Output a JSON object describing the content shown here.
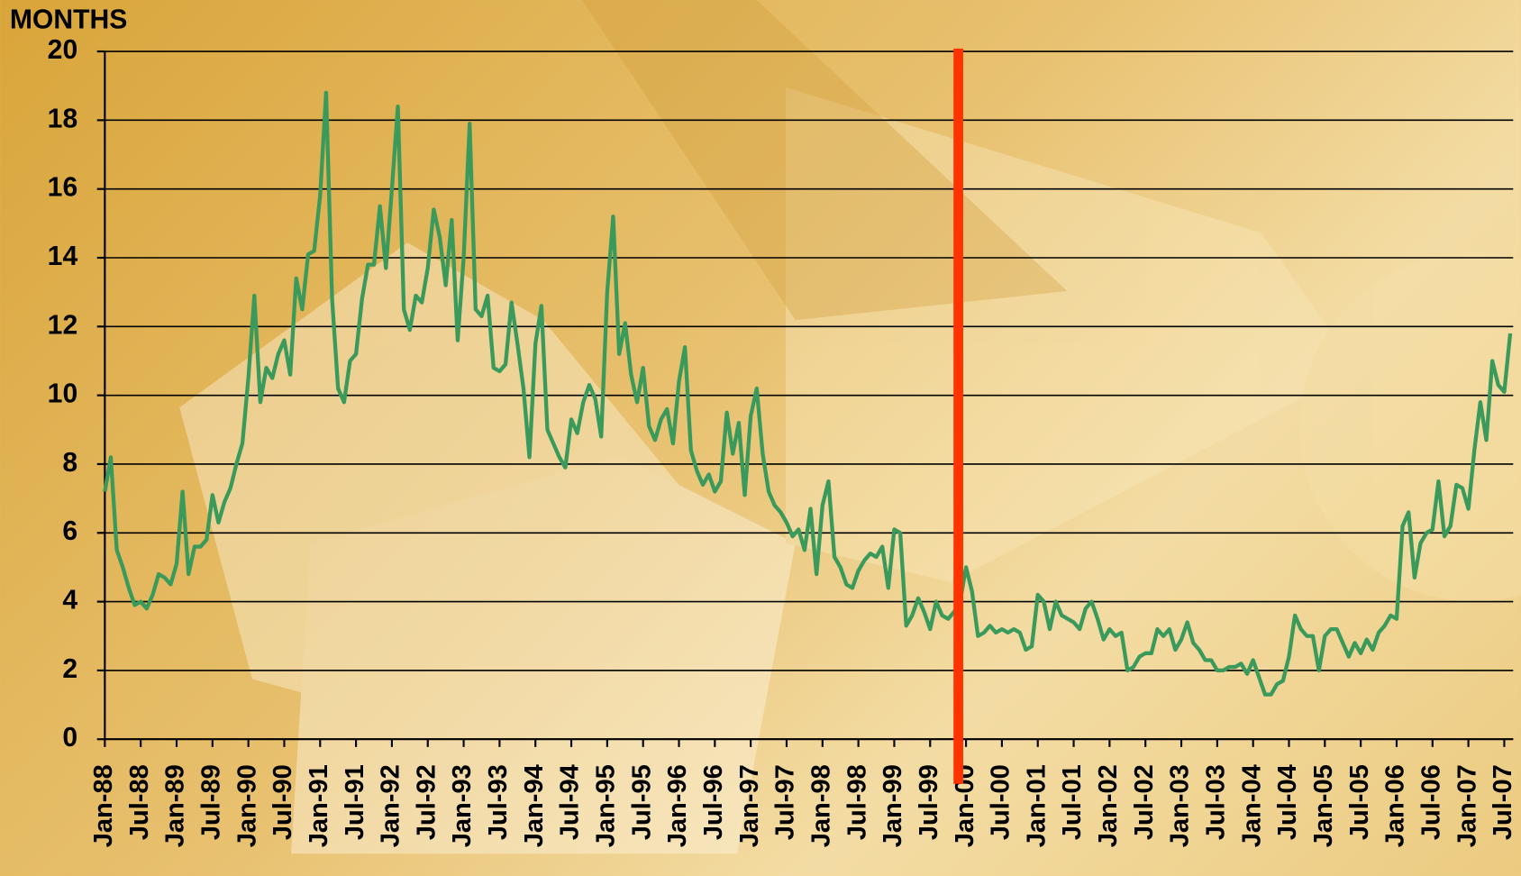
{
  "chart_data": {
    "type": "line",
    "y_label": "MONTHS",
    "categories": [
      "Jan-88",
      null,
      null,
      null,
      null,
      null,
      "Jul-88",
      null,
      null,
      null,
      null,
      null,
      "Jan-89",
      null,
      null,
      null,
      null,
      null,
      "Jul-89",
      null,
      null,
      null,
      null,
      null,
      "Jan-90",
      null,
      null,
      null,
      null,
      null,
      "Jul-90",
      null,
      null,
      null,
      null,
      null,
      "Jan-91",
      null,
      null,
      null,
      null,
      null,
      "Jul-91",
      null,
      null,
      null,
      null,
      null,
      "Jan-92",
      null,
      null,
      null,
      null,
      null,
      "Jul-92",
      null,
      null,
      null,
      null,
      null,
      "Jan-93",
      null,
      null,
      null,
      null,
      null,
      "Jul-93",
      null,
      null,
      null,
      null,
      null,
      "Jan-94",
      null,
      null,
      null,
      null,
      null,
      "Jul-94",
      null,
      null,
      null,
      null,
      null,
      "Jan-95",
      null,
      null,
      null,
      null,
      null,
      "Jul-95",
      null,
      null,
      null,
      null,
      null,
      "Jan-96",
      null,
      null,
      null,
      null,
      null,
      "Jul-96",
      null,
      null,
      null,
      null,
      null,
      "Jan-97",
      null,
      null,
      null,
      null,
      null,
      "Jul-97",
      null,
      null,
      null,
      null,
      null,
      "Jan-98",
      null,
      null,
      null,
      null,
      null,
      "Jul-98",
      null,
      null,
      null,
      null,
      null,
      "Jan-99",
      null,
      null,
      null,
      null,
      null,
      "Jul-99",
      null,
      null,
      null,
      null,
      null,
      "Jan-00",
      null,
      null,
      null,
      null,
      null,
      "Jul-00",
      null,
      null,
      null,
      null,
      null,
      "Jan-01",
      null,
      null,
      null,
      null,
      null,
      "Jul-01",
      null,
      null,
      null,
      null,
      null,
      "Jan-02",
      null,
      null,
      null,
      null,
      null,
      "Jul-02",
      null,
      null,
      null,
      null,
      null,
      "Jan-03",
      null,
      null,
      null,
      null,
      null,
      "Jul-03",
      null,
      null,
      null,
      null,
      null,
      "Jan-04",
      null,
      null,
      null,
      null,
      null,
      "Jul-04",
      null,
      null,
      null,
      null,
      null,
      "Jan-05",
      null,
      null,
      null,
      null,
      null,
      "Jul-05",
      null,
      null,
      null,
      null,
      null,
      "Jan-06",
      null,
      null,
      null,
      null,
      null,
      "Jul-06",
      null,
      null,
      null,
      null,
      null,
      "Jan-07",
      null,
      null,
      null,
      null,
      null,
      "Jul-07",
      null
    ],
    "series": [
      {
        "color": "#3a9a5c",
        "values": [
          7.2,
          8.2,
          5.5,
          5.0,
          4.4,
          3.9,
          4.0,
          3.8,
          4.2,
          4.8,
          4.7,
          4.5,
          5.1,
          7.2,
          4.8,
          5.6,
          5.6,
          5.8,
          7.1,
          6.3,
          6.9,
          7.3,
          8.0,
          8.6,
          10.5,
          12.9,
          9.8,
          10.8,
          10.5,
          11.2,
          11.6,
          10.6,
          13.4,
          12.5,
          14.1,
          14.2,
          15.8,
          18.8,
          12.8,
          10.2,
          9.8,
          11.0,
          11.2,
          12.8,
          13.8,
          13.8,
          15.5,
          13.7,
          16.0,
          18.4,
          12.5,
          11.9,
          12.9,
          12.7,
          13.7,
          15.4,
          14.6,
          13.2,
          15.1,
          11.6,
          14.0,
          17.9,
          12.5,
          12.3,
          12.9,
          10.8,
          10.7,
          10.9,
          12.7,
          11.5,
          10.2,
          8.2,
          11.5,
          12.6,
          9.0,
          8.6,
          8.2,
          7.9,
          9.3,
          8.9,
          9.8,
          10.3,
          9.9,
          8.8,
          13.0,
          15.2,
          11.2,
          12.1,
          10.6,
          9.8,
          10.8,
          9.1,
          8.7,
          9.3,
          9.6,
          8.6,
          10.4,
          11.4,
          8.4,
          7.8,
          7.4,
          7.7,
          7.2,
          7.5,
          9.5,
          8.3,
          9.2,
          7.1,
          9.4,
          10.2,
          8.3,
          7.2,
          6.8,
          6.6,
          6.3,
          5.9,
          6.1,
          5.5,
          6.7,
          4.8,
          6.8,
          7.5,
          5.3,
          5.0,
          4.5,
          4.4,
          4.9,
          5.2,
          5.4,
          5.3,
          5.6,
          4.4,
          6.1,
          6.0,
          3.3,
          3.6,
          4.1,
          3.7,
          3.2,
          4.0,
          3.6,
          3.5,
          3.7,
          4.0,
          5.0,
          4.3,
          3.0,
          3.1,
          3.3,
          3.1,
          3.2,
          3.1,
          3.2,
          3.1,
          2.6,
          2.7,
          4.2,
          4.0,
          3.2,
          4.0,
          3.6,
          3.5,
          3.4,
          3.2,
          3.8,
          4.0,
          3.5,
          2.9,
          3.2,
          3.0,
          3.1,
          2.0,
          2.1,
          2.4,
          2.5,
          2.5,
          3.2,
          3.0,
          3.2,
          2.6,
          2.9,
          3.4,
          2.8,
          2.6,
          2.3,
          2.3,
          2.0,
          2.0,
          2.1,
          2.1,
          2.2,
          1.9,
          2.3,
          1.8,
          1.3,
          1.3,
          1.6,
          1.7,
          2.4,
          3.6,
          3.2,
          3.0,
          3.0,
          2.0,
          3.0,
          3.2,
          3.2,
          2.8,
          2.4,
          2.8,
          2.5,
          2.9,
          2.6,
          3.1,
          3.3,
          3.6,
          3.5,
          6.2,
          6.6,
          4.7,
          5.7,
          6.0,
          6.1,
          7.5,
          5.9,
          6.2,
          7.4,
          7.3,
          6.7,
          8.4,
          9.8,
          8.7,
          11.0,
          10.3,
          10.1,
          11.8
        ]
      }
    ],
    "ylim": [
      0,
      20
    ],
    "yticks": [
      0,
      2,
      4,
      6,
      8,
      10,
      12,
      14,
      16,
      18,
      20
    ],
    "grid": true
  }
}
